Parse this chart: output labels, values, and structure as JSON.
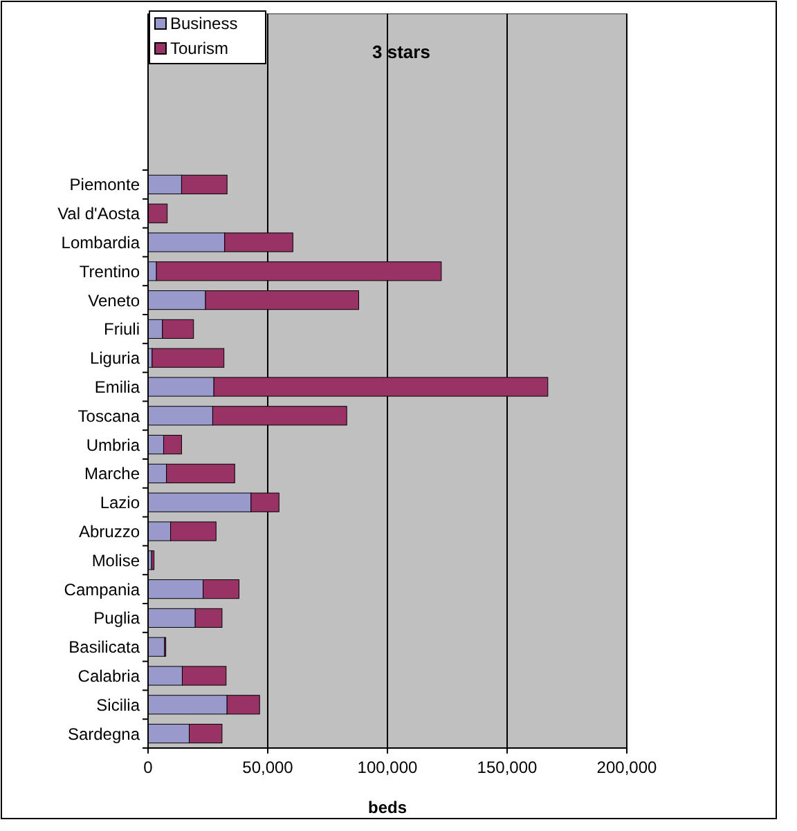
{
  "chart_data": {
    "type": "bar",
    "orientation": "horizontal",
    "stacked": true,
    "title": "3 stars",
    "xlabel": "beds",
    "categories": [
      "Piemonte",
      "Val d'Aosta",
      "Lombardia",
      "Trentino",
      "Veneto",
      "Friuli",
      "Liguria",
      "Emilia",
      "Toscana",
      "Umbria",
      "Marche",
      "Lazio",
      "Abruzzo",
      "Molise",
      "Campania",
      "Puglia",
      "Basilicata",
      "Calabria",
      "Sicilia",
      "Sardegna"
    ],
    "series": [
      {
        "name": "Business",
        "color": "#9999cc",
        "values": [
          14000,
          null,
          32000,
          3500,
          24000,
          6000,
          1700,
          27500,
          27000,
          6500,
          7700,
          43000,
          9400,
          1500,
          23000,
          19700,
          6900,
          14300,
          33000,
          17200
        ]
      },
      {
        "name": "Tourism",
        "color": "#993366",
        "values": [
          19000,
          8000,
          28500,
          119000,
          64000,
          13000,
          30000,
          139500,
          56000,
          7500,
          28500,
          11700,
          19000,
          1000,
          15000,
          11200,
          500,
          18300,
          13600,
          13700
        ]
      }
    ],
    "xlim": [
      0,
      200000
    ],
    "xticks": [
      {
        "value": 0,
        "label": "0"
      },
      {
        "value": 50000,
        "label": "50,000"
      },
      {
        "value": 100000,
        "label": "100,000"
      },
      {
        "value": 150000,
        "label": "150,000"
      },
      {
        "value": 200000,
        "label": "200,000"
      }
    ],
    "grid": "x",
    "legend": "top left"
  }
}
